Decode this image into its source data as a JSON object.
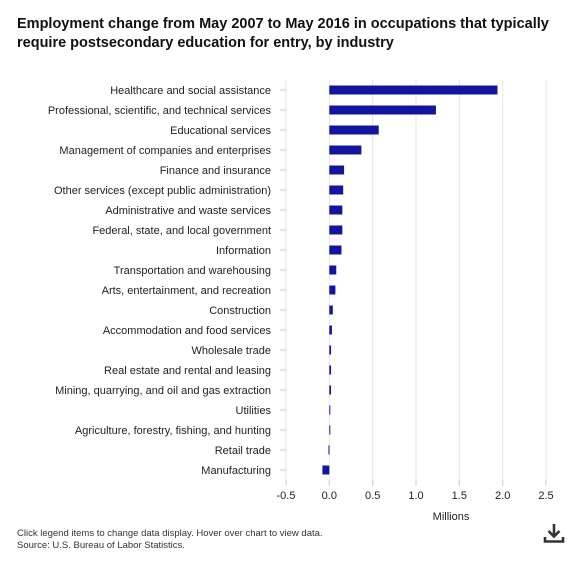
{
  "title": "Employment change from May 2007 to May 2016 in occupations that typically require postsecondary education for entry, by industry",
  "footer": {
    "note": "Click legend items to change data display. Hover over chart to view data.",
    "source": "Source: U.S. Bureau of Labor Statistics."
  },
  "download_icon": "download-icon",
  "colors": {
    "bar": "#14149e",
    "gridline": "#e6e6e6",
    "tick": "#cccccc"
  },
  "chart_data": {
    "type": "bar",
    "orientation": "horizontal",
    "title": "Employment change from May 2007 to May 2016 in occupations that typically require postsecondary education for entry, by industry",
    "xlabel": "Millions",
    "ylabel": "",
    "xlim": [
      -0.5,
      2.5
    ],
    "x_ticks": [
      "-0.5",
      "0.0",
      "0.5",
      "1.0",
      "1.5",
      "2.0",
      "2.5"
    ],
    "grid": true,
    "categories": [
      "Healthcare and social assistance",
      "Professional, scientific, and technical services",
      "Educational services",
      "Management of companies and enterprises",
      "Finance and insurance",
      "Other services (except public administration)",
      "Administrative and waste services",
      "Federal, state, and local government",
      "Information",
      "Transportation and warehousing",
      "Arts, entertainment, and recreation",
      "Construction",
      "Accommodation and food services",
      "Wholesale trade",
      "Real estate and rental and leasing",
      "Mining, quarrying, and oil and gas extraction",
      "Utilities",
      "Agriculture, forestry, fishing, and hunting",
      "Retail trade",
      "Manufacturing"
    ],
    "values": [
      1.94,
      1.23,
      0.57,
      0.37,
      0.17,
      0.16,
      0.15,
      0.15,
      0.14,
      0.08,
      0.07,
      0.04,
      0.03,
      0.02,
      0.02,
      0.02,
      0.01,
      0.01,
      -0.01,
      -0.08
    ]
  }
}
